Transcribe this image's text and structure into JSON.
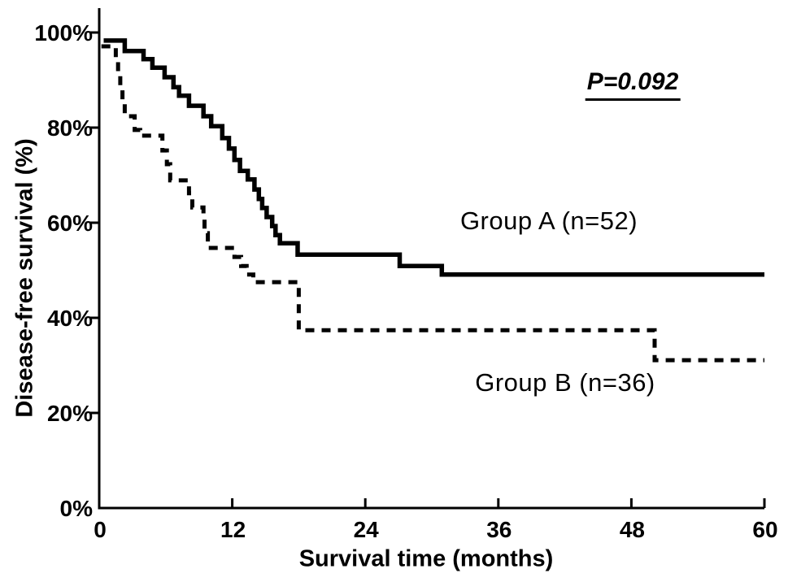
{
  "figure": {
    "background_color": "#ffffff",
    "ink_color": "#000000"
  },
  "chart_data": {
    "type": "line",
    "subtype": "kaplan_meier_step",
    "title": "",
    "xlabel": "Survival time (months)",
    "ylabel": "Disease-free survival (%)",
    "xlim": [
      0,
      60
    ],
    "ylim": [
      0,
      100
    ],
    "grid": false,
    "legend_position": "inline-labels",
    "x_ticks": [
      {
        "value": 0,
        "label": "0"
      },
      {
        "value": 12,
        "label": "12"
      },
      {
        "value": 24,
        "label": "24"
      },
      {
        "value": 36,
        "label": "36"
      },
      {
        "value": 48,
        "label": "48"
      },
      {
        "value": 60,
        "label": "60"
      }
    ],
    "y_ticks": [
      {
        "value": 100,
        "label": "100%"
      },
      {
        "value": 80,
        "label": "80%"
      },
      {
        "value": 60,
        "label": "60%"
      },
      {
        "value": 40,
        "label": "40%"
      },
      {
        "value": 20,
        "label": "20%"
      },
      {
        "value": 0,
        "label": "0%"
      }
    ],
    "annotation": {
      "text": "P=0.092"
    },
    "series": [
      {
        "name": "Group A",
        "label": "Group A (n=52)",
        "n": 52,
        "line_style": "solid",
        "color": "#000000",
        "end_t": 60,
        "steps": [
          [
            0.4,
            98.3
          ],
          [
            2.3,
            96.1
          ],
          [
            4.0,
            94.4
          ],
          [
            4.8,
            92.6
          ],
          [
            5.9,
            90.6
          ],
          [
            6.7,
            88.5
          ],
          [
            7.2,
            86.7
          ],
          [
            8.1,
            84.6
          ],
          [
            9.4,
            82.4
          ],
          [
            10.1,
            80.3
          ],
          [
            11.1,
            77.8
          ],
          [
            11.7,
            75.6
          ],
          [
            12.2,
            73.2
          ],
          [
            12.7,
            70.9
          ],
          [
            13.4,
            69.1
          ],
          [
            14.0,
            67.0
          ],
          [
            14.4,
            65.0
          ],
          [
            14.7,
            63.1
          ],
          [
            15.1,
            61.2
          ],
          [
            15.6,
            59.3
          ],
          [
            15.9,
            57.4
          ],
          [
            16.3,
            55.7
          ],
          [
            17.9,
            53.3
          ],
          [
            27.1,
            50.9
          ],
          [
            30.9,
            49.1
          ]
        ]
      },
      {
        "name": "Group B",
        "label": "Group B (n=36)",
        "n": 36,
        "line_style": "dashed",
        "color": "#000000",
        "end_t": 60,
        "steps": [
          [
            0.2,
            97.1
          ],
          [
            1.5,
            94.5
          ],
          [
            1.7,
            91.5
          ],
          [
            1.9,
            88.0
          ],
          [
            2.1,
            85.0
          ],
          [
            2.3,
            82.4
          ],
          [
            3.2,
            79.5
          ],
          [
            3.7,
            78.3
          ],
          [
            5.7,
            75.2
          ],
          [
            6.1,
            72.3
          ],
          [
            6.4,
            68.9
          ],
          [
            8.1,
            66.2
          ],
          [
            8.4,
            63.2
          ],
          [
            9.4,
            61.0
          ],
          [
            9.5,
            57.8
          ],
          [
            9.8,
            54.7
          ],
          [
            12.2,
            52.8
          ],
          [
            12.8,
            50.9
          ],
          [
            13.3,
            49.1
          ],
          [
            13.9,
            47.5
          ],
          [
            18.0,
            37.4
          ],
          [
            50.1,
            31.1
          ]
        ]
      }
    ]
  }
}
